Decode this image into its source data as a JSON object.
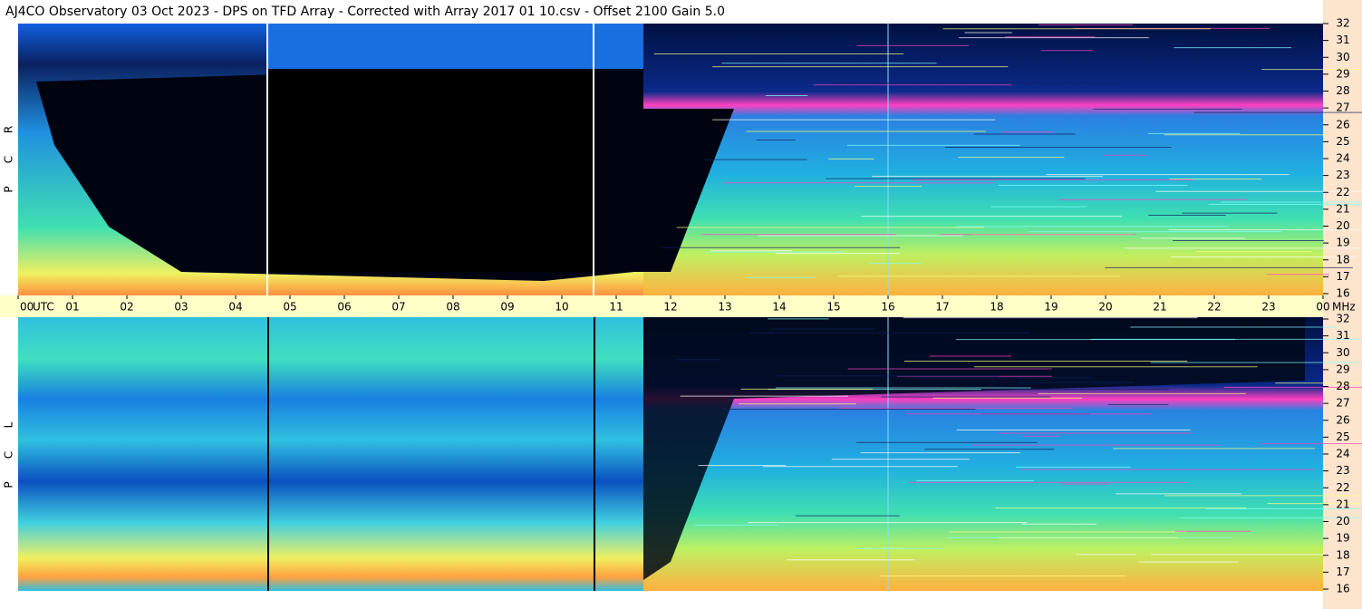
{
  "header": {
    "title": "AJ4CO Observatory  03 Oct 2023  -  DPS on TFD Array  -  Corrected with Array 2017 01 10.csv  -  Offset 2100  Gain 5.0"
  },
  "panels": [
    {
      "letters": [
        "R",
        "C",
        "P"
      ]
    },
    {
      "letters": [
        "L",
        "C",
        "P"
      ]
    }
  ],
  "time_axis": {
    "hours": [
      "00",
      "01",
      "02",
      "03",
      "04",
      "05",
      "06",
      "07",
      "08",
      "09",
      "10",
      "11",
      "12",
      "13",
      "14",
      "15",
      "16",
      "17",
      "18",
      "19",
      "20",
      "21",
      "22",
      "23",
      "00"
    ],
    "zone": "UTC"
  },
  "freq_axis": {
    "ticks": [
      32,
      31,
      30,
      29,
      28,
      27,
      26,
      25,
      24,
      23,
      22,
      21,
      20,
      19,
      18,
      17,
      16
    ],
    "unit": "MHz"
  }
}
